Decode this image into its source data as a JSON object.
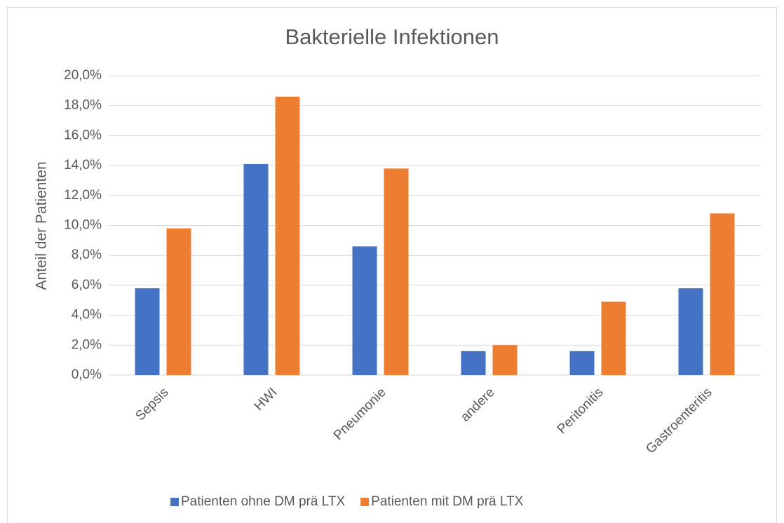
{
  "chart_data": {
    "type": "bar",
    "title": "Bakterielle Infektionen",
    "y_label": "Anteil der Patienten",
    "categories": [
      "Sepsis",
      "HWI",
      "Pneumonie",
      "andere",
      "Peritonitis",
      "Gastroenteritis"
    ],
    "series": [
      {
        "name": "Patienten ohne DM prä LTX",
        "color": "#4472c4",
        "values": [
          5.8,
          14.1,
          8.6,
          1.6,
          1.6,
          5.8
        ]
      },
      {
        "name": "Patienten mit DM prä LTX",
        "color": "#ed7d31",
        "values": [
          9.8,
          18.6,
          13.8,
          2.0,
          4.9,
          10.8
        ]
      }
    ],
    "ylim": [
      0,
      20
    ],
    "yticks": [
      {
        "value": 0,
        "label": "0,0%"
      },
      {
        "value": 2,
        "label": "2,0%"
      },
      {
        "value": 4,
        "label": "4,0%"
      },
      {
        "value": 6,
        "label": "6,0%"
      },
      {
        "value": 8,
        "label": "8,0%"
      },
      {
        "value": 10,
        "label": "10,0%"
      },
      {
        "value": 12,
        "label": "12,0%"
      },
      {
        "value": 14,
        "label": "14,0%"
      },
      {
        "value": 16,
        "label": "16,0%"
      },
      {
        "value": 18,
        "label": "18,0%"
      },
      {
        "value": 20,
        "label": "20,0%"
      }
    ],
    "grid": true,
    "legend": "bottom"
  }
}
